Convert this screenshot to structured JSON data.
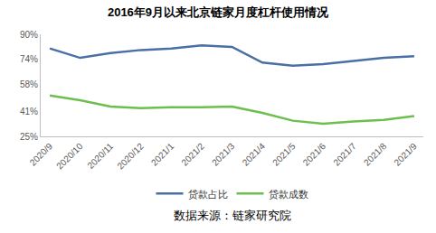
{
  "chart_data": {
    "type": "line",
    "title": "2016年9月以来北京链家月度杠杆使用情况",
    "categories": [
      "2020/9",
      "2020/10",
      "2020/11",
      "2020/12",
      "2021/1",
      "2021/2",
      "2021/3",
      "2021/4",
      "2021/5",
      "2021/6",
      "2021/7",
      "2021/8",
      "2021/9"
    ],
    "series": [
      {
        "name": "贷款占比",
        "color": "#4a6fa5",
        "values": [
          81,
          75,
          78,
          80,
          81,
          83,
          82,
          72,
          70,
          71,
          73,
          75,
          76
        ]
      },
      {
        "name": "贷款成数",
        "color": "#6cbf4f",
        "values": [
          51,
          48,
          44,
          43,
          43.5,
          43.5,
          44,
          40,
          35,
          33,
          34.5,
          35.5,
          38
        ]
      }
    ],
    "ylim": [
      25,
      90
    ],
    "yticks": [
      {
        "value": 25,
        "label": "25%"
      },
      {
        "value": 41,
        "label": "41%"
      },
      {
        "value": 58,
        "label": "58%"
      },
      {
        "value": 74,
        "label": "74%"
      },
      {
        "value": 90,
        "label": "90%"
      }
    ],
    "grid": false,
    "legend": "bottom",
    "annotations": [
      "数据来源：链家研究院"
    ]
  }
}
